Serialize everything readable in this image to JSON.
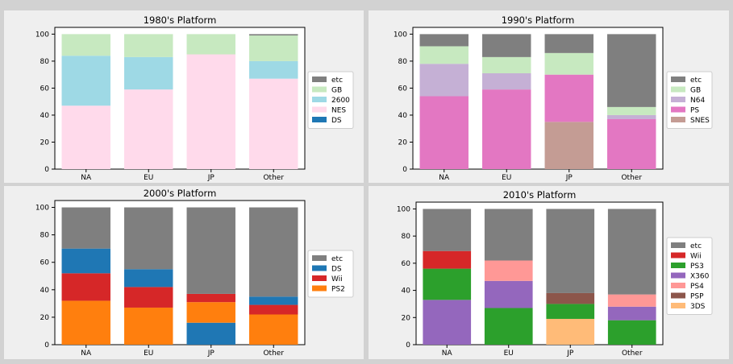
{
  "chart_data": [
    {
      "type": "bar",
      "stacked": true,
      "title": "1980's Platform",
      "categories": [
        "NA",
        "EU",
        "JP",
        "Other"
      ],
      "ylim": [
        0,
        105
      ],
      "yticks": [
        0,
        20,
        40,
        60,
        80,
        100
      ],
      "legend_position": "right",
      "series": [
        {
          "name": "DS",
          "color": "#1f77b4",
          "values": [
            0,
            0,
            0,
            0
          ]
        },
        {
          "name": "NES",
          "color": "#ffdaeb",
          "values": [
            47,
            59,
            85,
            67
          ]
        },
        {
          "name": "2600",
          "color": "#9ed9e5",
          "values": [
            37,
            24,
            0,
            13
          ]
        },
        {
          "name": "GB",
          "color": "#c7e9c0",
          "values": [
            16,
            17,
            15,
            19
          ]
        },
        {
          "name": "etc",
          "color": "#7f7f7f",
          "values": [
            0,
            0,
            0,
            1
          ]
        }
      ]
    },
    {
      "type": "bar",
      "stacked": true,
      "title": "1990's Platform",
      "categories": [
        "NA",
        "EU",
        "JP",
        "Other"
      ],
      "ylim": [
        0,
        105
      ],
      "yticks": [
        0,
        20,
        40,
        60,
        80,
        100
      ],
      "legend_position": "right",
      "series": [
        {
          "name": "SNES",
          "color": "#c49c94",
          "values": [
            0,
            0,
            35,
            0
          ]
        },
        {
          "name": "PS",
          "color": "#e377c2",
          "values": [
            54,
            59,
            35,
            37
          ]
        },
        {
          "name": "N64",
          "color": "#c5b0d5",
          "values": [
            24,
            12,
            0,
            3
          ]
        },
        {
          "name": "GB",
          "color": "#c7e9c0",
          "values": [
            13,
            12,
            16,
            6
          ]
        },
        {
          "name": "etc",
          "color": "#7f7f7f",
          "values": [
            9,
            17,
            14,
            54
          ]
        }
      ]
    },
    {
      "type": "bar",
      "stacked": true,
      "title": "2000's Platform",
      "categories": [
        "NA",
        "EU",
        "JP",
        "Other"
      ],
      "ylim": [
        0,
        105
      ],
      "yticks": [
        0,
        20,
        40,
        60,
        80,
        100
      ],
      "legend_position": "right",
      "series": [
        {
          "name": "PS2",
          "color": "#ff7f0e",
          "values": [
            32,
            27,
            0,
            22
          ]
        },
        {
          "name": "Wii",
          "color": "#d62728",
          "values": [
            20,
            15,
            0,
            7
          ]
        },
        {
          "name": "DS",
          "color": "#1f77b4",
          "values": [
            18,
            13,
            0,
            6
          ]
        },
        {
          "name": "DS",
          "color": "#1f77b4",
          "values": [
            0,
            0,
            16,
            0
          ]
        },
        {
          "name": "PS2",
          "color": "#ff7f0e",
          "values": [
            0,
            0,
            15,
            0
          ]
        },
        {
          "name": "Wii",
          "color": "#d62728",
          "values": [
            0,
            0,
            6,
            0
          ]
        },
        {
          "name": "etc",
          "color": "#7f7f7f",
          "values": [
            30,
            45,
            63,
            65
          ]
        }
      ]
    },
    {
      "type": "bar",
      "stacked": true,
      "title": "2010's Platform",
      "categories": [
        "NA",
        "EU",
        "JP",
        "Other"
      ],
      "ylim": [
        0,
        105
      ],
      "yticks": [
        0,
        20,
        40,
        60,
        80,
        100
      ],
      "legend_position": "right",
      "series": [
        {
          "name": "X360",
          "color": "#9467bd",
          "values": [
            33,
            0,
            0,
            0
          ]
        },
        {
          "name": "PS3",
          "color": "#2ca02c",
          "values": [
            23,
            0,
            0,
            0
          ]
        },
        {
          "name": "Wii",
          "color": "#d62728",
          "values": [
            13,
            0,
            0,
            0
          ]
        },
        {
          "name": "PS3",
          "color": "#2ca02c",
          "values": [
            0,
            27,
            0,
            0
          ]
        },
        {
          "name": "X360",
          "color": "#9467bd",
          "values": [
            0,
            20,
            0,
            0
          ]
        },
        {
          "name": "PS4",
          "color": "#ff9896",
          "values": [
            0,
            15,
            0,
            0
          ]
        },
        {
          "name": "3DS",
          "color": "#ffbb78",
          "values": [
            0,
            0,
            19,
            0
          ]
        },
        {
          "name": "PS3",
          "color": "#2ca02c",
          "values": [
            0,
            0,
            11,
            0
          ]
        },
        {
          "name": "PSP",
          "color": "#8c564b",
          "values": [
            0,
            0,
            8,
            0
          ]
        },
        {
          "name": "PS3",
          "color": "#2ca02c",
          "values": [
            0,
            0,
            0,
            18
          ]
        },
        {
          "name": "X360",
          "color": "#9467bd",
          "values": [
            0,
            0,
            0,
            10
          ]
        },
        {
          "name": "PS4",
          "color": "#ff9896",
          "values": [
            0,
            0,
            0,
            9
          ]
        },
        {
          "name": "etc",
          "color": "#7f7f7f",
          "values": [
            31,
            38,
            62,
            63
          ]
        }
      ]
    }
  ],
  "legends": [
    [
      {
        "label": "etc",
        "color": "#7f7f7f"
      },
      {
        "label": "GB",
        "color": "#c7e9c0"
      },
      {
        "label": "2600",
        "color": "#9ed9e5"
      },
      {
        "label": "NES",
        "color": "#ffdaeb"
      },
      {
        "label": "DS",
        "color": "#1f77b4"
      }
    ],
    [
      {
        "label": "etc",
        "color": "#7f7f7f"
      },
      {
        "label": "GB",
        "color": "#c7e9c0"
      },
      {
        "label": "N64",
        "color": "#c5b0d5"
      },
      {
        "label": "PS",
        "color": "#e377c2"
      },
      {
        "label": "SNES",
        "color": "#c49c94"
      }
    ],
    [
      {
        "label": "etc",
        "color": "#7f7f7f"
      },
      {
        "label": "DS",
        "color": "#1f77b4"
      },
      {
        "label": "Wii",
        "color": "#d62728"
      },
      {
        "label": "PS2",
        "color": "#ff7f0e"
      }
    ],
    [
      {
        "label": "etc",
        "color": "#7f7f7f"
      },
      {
        "label": "Wii",
        "color": "#d62728"
      },
      {
        "label": "PS3",
        "color": "#2ca02c"
      },
      {
        "label": "X360",
        "color": "#9467bd"
      },
      {
        "label": "PS4",
        "color": "#ff9896"
      },
      {
        "label": "PSP",
        "color": "#8c564b"
      },
      {
        "label": "3DS",
        "color": "#ffbb78"
      }
    ]
  ]
}
